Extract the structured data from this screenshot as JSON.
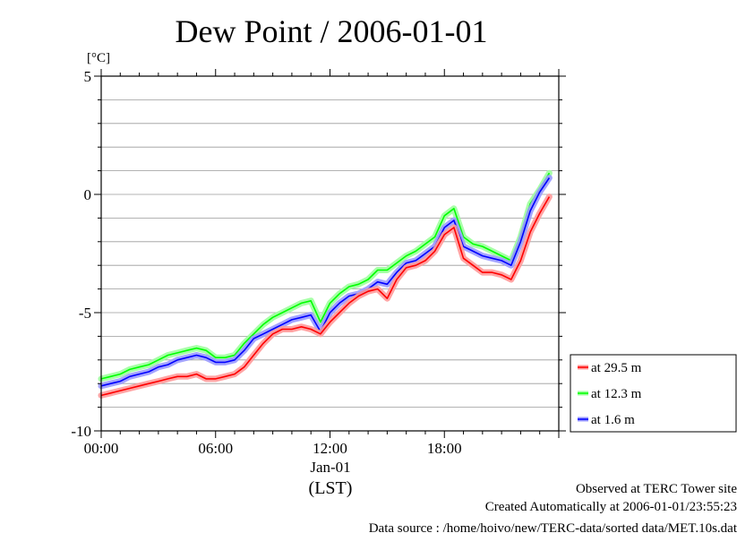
{
  "chart_data": {
    "type": "line",
    "title": "Dew Point / 2006-01-01",
    "yunit": "[°C]",
    "ylim": [
      -10,
      5
    ],
    "yticks": [
      5,
      0,
      -5,
      -10
    ],
    "ytick_labels": [
      "5",
      "0",
      "-5",
      "-10"
    ],
    "xlim": [
      0,
      24
    ],
    "xticks": [
      0,
      6,
      12,
      18
    ],
    "xtick_labels": [
      "00:00",
      "06:00",
      "12:00",
      "18:00"
    ],
    "date_label": "Jan-01",
    "xlabel": "(LST)",
    "grid": "horizontal",
    "legend_position": "right",
    "x": [
      0,
      0.5,
      1,
      1.5,
      2,
      2.5,
      3,
      3.5,
      4,
      4.5,
      5,
      5.5,
      6,
      6.5,
      7,
      7.5,
      8,
      8.5,
      9,
      9.5,
      10,
      10.5,
      11,
      11.5,
      12,
      12.5,
      13,
      13.5,
      14,
      14.5,
      15,
      15.5,
      16,
      16.5,
      17,
      17.5,
      18,
      18.5,
      19,
      19.5,
      20,
      20.5,
      21,
      21.5,
      22,
      22.5,
      23,
      23.5
    ],
    "series": [
      {
        "name": "at 29.5 m",
        "color": "#ff0000",
        "values": [
          -8.5,
          -8.4,
          -8.3,
          -8.2,
          -8.1,
          -8.0,
          -7.9,
          -7.8,
          -7.7,
          -7.7,
          -7.6,
          -7.8,
          -7.8,
          -7.7,
          -7.6,
          -7.3,
          -6.8,
          -6.3,
          -5.9,
          -5.7,
          -5.7,
          -5.6,
          -5.7,
          -5.9,
          -5.4,
          -5.0,
          -4.6,
          -4.3,
          -4.1,
          -4.0,
          -4.4,
          -3.6,
          -3.1,
          -3.0,
          -2.8,
          -2.4,
          -1.7,
          -1.4,
          -2.7,
          -3.0,
          -3.3,
          -3.3,
          -3.4,
          -3.6,
          -2.8,
          -1.6,
          -0.8,
          -0.1
        ]
      },
      {
        "name": "at 12.3 m",
        "color": "#00ff00",
        "values": [
          -7.8,
          -7.7,
          -7.6,
          -7.4,
          -7.3,
          -7.2,
          -7.0,
          -6.8,
          -6.7,
          -6.6,
          -6.5,
          -6.6,
          -6.9,
          -6.9,
          -6.8,
          -6.3,
          -5.9,
          -5.5,
          -5.2,
          -5.0,
          -4.8,
          -4.6,
          -4.5,
          -5.4,
          -4.6,
          -4.2,
          -3.9,
          -3.8,
          -3.6,
          -3.2,
          -3.2,
          -2.9,
          -2.6,
          -2.4,
          -2.1,
          -1.8,
          -0.9,
          -0.6,
          -1.8,
          -2.1,
          -2.2,
          -2.4,
          -2.6,
          -2.8,
          -1.8,
          -0.4,
          0.2,
          0.9
        ]
      },
      {
        "name": "at 1.6 m",
        "color": "#0000ff",
        "values": [
          -8.1,
          -8.0,
          -7.9,
          -7.7,
          -7.6,
          -7.5,
          -7.3,
          -7.2,
          -7.0,
          -6.9,
          -6.8,
          -6.9,
          -7.1,
          -7.1,
          -7.0,
          -6.6,
          -6.1,
          -5.9,
          -5.7,
          -5.5,
          -5.3,
          -5.2,
          -5.1,
          -5.8,
          -5.0,
          -4.6,
          -4.3,
          -4.2,
          -4.0,
          -3.7,
          -3.8,
          -3.3,
          -2.9,
          -2.8,
          -2.5,
          -2.2,
          -1.4,
          -1.1,
          -2.2,
          -2.4,
          -2.6,
          -2.7,
          -2.8,
          -3.0,
          -2.0,
          -0.7,
          0.1,
          0.7
        ]
      }
    ]
  },
  "footer": {
    "line1": "Observed at TERC Tower site",
    "line2": "Created Automatically at 2006-01-01/23:55:23",
    "line3": "Data source : /home/hoivo/new/TERC-data/sorted  data/MET.10s.dat"
  }
}
